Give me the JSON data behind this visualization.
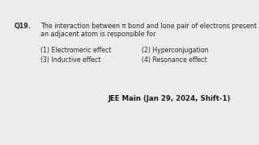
{
  "background_color": "#edecea",
  "question_number": "Q19.",
  "question_text_line1": "The interaction between π bond and lone pair of electrons present on",
  "question_text_line2": "an adjacent atom is responsible for",
  "option1": "(1) Electromeric effect",
  "option2": "(2) Hyperconjugation",
  "option3": "(3) Inductive effect",
  "option4": "(4) Resonance effect",
  "footer": "JEE Main (Jan 29, 2024, Shift-1)",
  "text_color": "#2a2828",
  "footer_color": "#1a1a1a",
  "q_fontsize": 5.8,
  "opt_fontsize": 5.6,
  "footer_fontsize": 6.2
}
